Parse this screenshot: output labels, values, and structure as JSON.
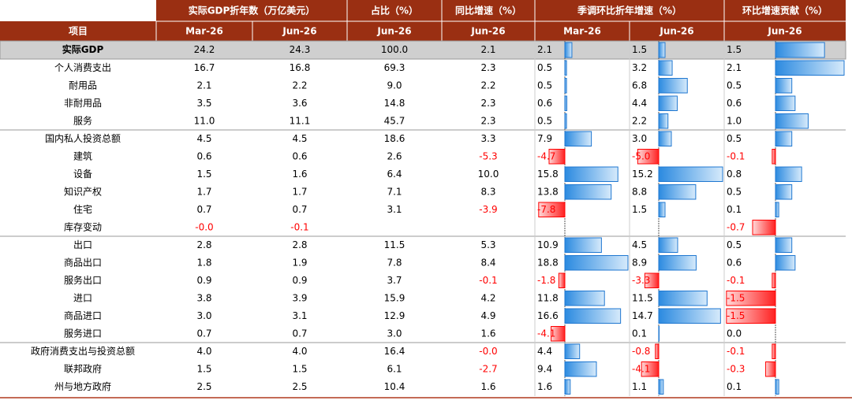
{
  "header": {
    "groups": [
      "实际GDP折年数（万亿美元）",
      "占比（%）",
      "同比增速（%）",
      "季调环比折年增速（%）",
      "环比增速贡献（%）"
    ],
    "columns": [
      "项目",
      "Mar-26",
      "Jun-26",
      "Jun-26",
      "Jun-26",
      "Mar-26",
      "Jun-26",
      "Jun-26"
    ]
  },
  "table": {
    "rows": [
      [
        "实际GDP",
        "24.2",
        "24.3",
        "100.0",
        "2.1",
        "2.1",
        "1.5",
        "1.5"
      ],
      [
        "个人消费支出",
        "16.7",
        "16.8",
        "69.3",
        "2.3",
        "0.5",
        "3.2",
        "2.1"
      ],
      [
        "耐用品",
        "2.1",
        "2.2",
        "9.0",
        "2.2",
        "0.5",
        "6.8",
        "0.5"
      ],
      [
        "非耐用品",
        "3.5",
        "3.6",
        "14.8",
        "2.3",
        "0.6",
        "4.4",
        "0.6"
      ],
      [
        "服务",
        "11.0",
        "11.1",
        "45.7",
        "2.3",
        "0.5",
        "2.2",
        "1.0"
      ],
      [
        "国内私人投资总额",
        "4.5",
        "4.5",
        "18.6",
        "3.3",
        "7.9",
        "3.0",
        "0.5"
      ],
      [
        "建筑",
        "0.6",
        "0.6",
        "2.6",
        "-5.3",
        "-4.7",
        "-5.0",
        "-0.1"
      ],
      [
        "设备",
        "1.5",
        "1.6",
        "6.4",
        "10.0",
        "15.8",
        "15.2",
        "0.8"
      ],
      [
        "知识产权",
        "1.7",
        "1.7",
        "7.1",
        "8.3",
        "13.8",
        "8.8",
        "0.5"
      ],
      [
        "住宅",
        "0.7",
        "0.7",
        "3.1",
        "-3.9",
        "-7.8",
        "1.5",
        "0.1"
      ],
      [
        "库存变动",
        "-0.0",
        "-0.1",
        null,
        null,
        null,
        null,
        "-0.7"
      ],
      [
        "出口",
        "2.8",
        "2.8",
        "11.5",
        "5.3",
        "10.9",
        "4.5",
        "0.5"
      ],
      [
        "商品出口",
        "1.8",
        "1.9",
        "7.8",
        "8.4",
        "18.8",
        "8.9",
        "0.6"
      ],
      [
        "服务出口",
        "0.9",
        "0.9",
        "3.7",
        "-0.1",
        "-1.8",
        "-3.3",
        "-0.1"
      ],
      [
        "进口",
        "3.8",
        "3.9",
        "15.9",
        "4.2",
        "11.8",
        "11.5",
        "-1.5"
      ],
      [
        "商品进口",
        "3.0",
        "3.1",
        "12.9",
        "4.9",
        "16.6",
        "14.7",
        "-1.5"
      ],
      [
        "服务进口",
        "0.7",
        "0.7",
        "3.0",
        "1.6",
        "-4.1",
        "0.1",
        "0.0"
      ],
      [
        "政府消费支出与投资总额",
        "4.0",
        "4.0",
        "16.4",
        "-0.0",
        "4.4",
        "-0.8",
        "-0.1"
      ],
      [
        "联邦政府",
        "1.5",
        "1.5",
        "6.1",
        "-2.7",
        "9.4",
        "-4.1",
        "-0.3"
      ],
      [
        "州与地方政府",
        "2.5",
        "2.5",
        "10.4",
        "1.6",
        "1.6",
        "1.1",
        "0.1"
      ]
    ]
  }
}
